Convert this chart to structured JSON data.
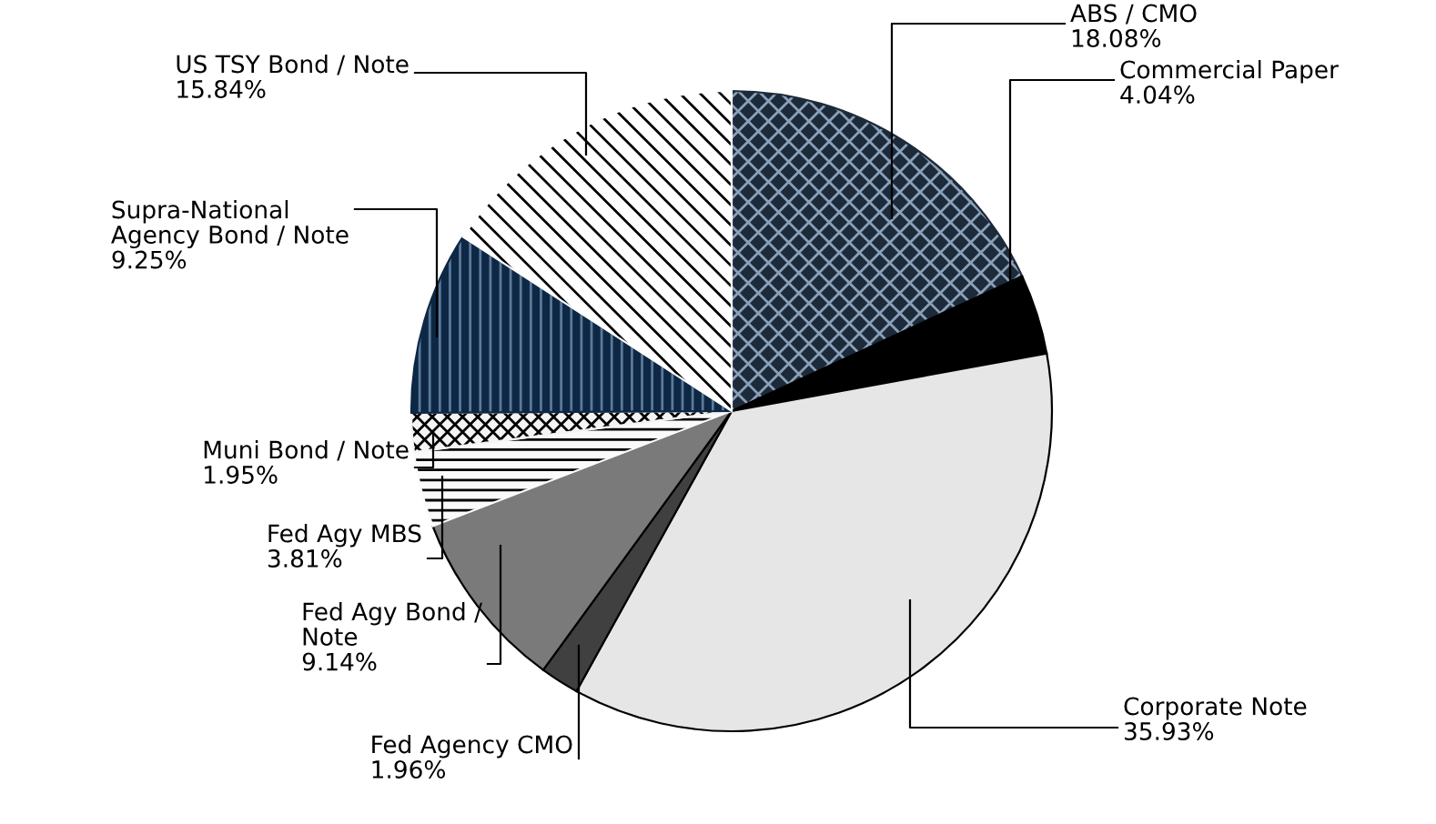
{
  "chart_data": {
    "type": "pie",
    "categories": [
      "ABS / CMO",
      "Commercial Paper",
      "Corporate Note",
      "Fed Agency CMO",
      "Fed Agy Bond /\nNote",
      "Fed Agy MBS",
      "Muni Bond / Note",
      "Supra-National\nAgency Bond / Note",
      "US TSY Bond / Note"
    ],
    "values": [
      18.08,
      4.04,
      35.93,
      1.96,
      9.14,
      3.81,
      1.95,
      9.25,
      15.84
    ],
    "value_labels": [
      "18.08%",
      "4.04%",
      "35.93%",
      "1.96%",
      "9.14%",
      "3.81%",
      "1.95%",
      "9.25%",
      "15.84%"
    ],
    "colors": [
      "#1c2a3a",
      "#000000",
      "#e6e6e6",
      "#404040",
      "#7a7a7a",
      "#fafafa",
      "#f4f4f4",
      "#0d2744",
      "#ffffff"
    ]
  }
}
